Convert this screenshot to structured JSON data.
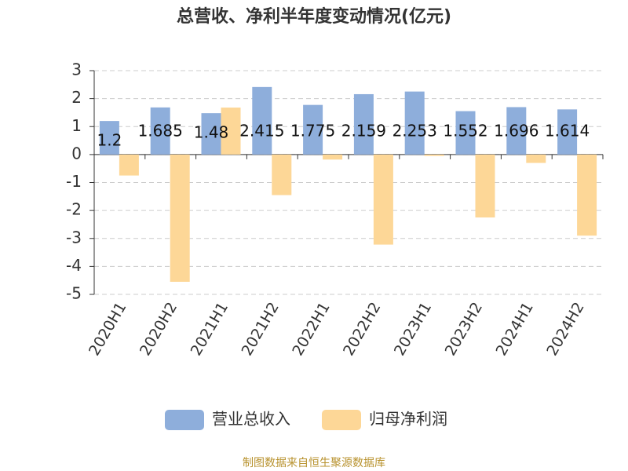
{
  "chart_data": {
    "type": "bar",
    "title": "总营收、净利半年度变动情况(亿元)",
    "categories": [
      "2020H1",
      "2020H2",
      "2021H1",
      "2021H2",
      "2022H1",
      "2022H2",
      "2023H1",
      "2023H2",
      "2024H1",
      "2024H2"
    ],
    "series": [
      {
        "name": "营业总收入",
        "color": "#8eaedb",
        "show_labels": true,
        "values": [
          1.2,
          1.685,
          1.48,
          2.415,
          1.775,
          2.159,
          2.253,
          1.552,
          1.696,
          1.614
        ]
      },
      {
        "name": "归母净利润",
        "color": "#fdd797",
        "show_labels": false,
        "values": [
          -0.75,
          -4.55,
          1.68,
          -1.45,
          -0.18,
          -3.22,
          -0.05,
          -2.25,
          -0.3,
          -2.9
        ]
      }
    ],
    "ylim": [
      -5,
      3
    ],
    "yticks": [
      -5,
      -4,
      -3,
      -2,
      -1,
      0,
      1,
      2,
      3
    ],
    "grid": true,
    "source": "制图数据来自恒生聚源数据库"
  }
}
